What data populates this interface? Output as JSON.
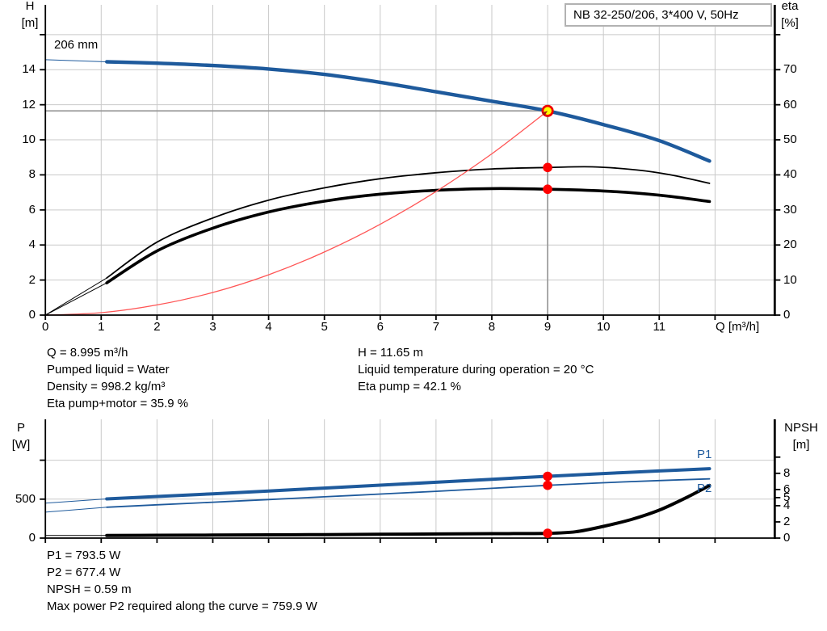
{
  "title_box": {
    "text": "NB 32-250/206, 3*400 V, 50Hz"
  },
  "impeller_label": "206 mm",
  "curve_labels": {
    "p1": "P1",
    "p2": "P2"
  },
  "info_top": {
    "left": [
      "Q = 8.995 m³/h",
      "Pumped liquid = Water",
      "Density = 998.2 kg/m³",
      "Eta pump+motor = 35.9 %"
    ],
    "right": [
      "H = 11.65 m",
      "Liquid temperature during operation = 20 °C",
      "Eta pump = 42.1 %"
    ]
  },
  "info_bottom": [
    "P1 = 793.5 W",
    "P2 = 677.4 W",
    "NPSH = 0.59 m",
    "Max power P2 required along the curve = 759.9 W"
  ],
  "colors": {
    "blue": "#1e5a9c",
    "black": "#000000",
    "red": "#fe0000",
    "system_red": "#ff5555",
    "arrow_red": "#aa1111",
    "grid": "#c9c9c9",
    "guide": "#999999",
    "axis": "#000000",
    "duty_fill": "#ffff00",
    "duty_ring": "#ee0000",
    "box_border": "#b2b2b2"
  },
  "chart_data": [
    {
      "id": "head_eta_chart",
      "type": "line",
      "title": "NB 32-250/206, 3*400 V, 50Hz",
      "duty_point": {
        "q": 8.995,
        "h": 11.65,
        "eta_pump": 42.1,
        "eta_pump_motor": 35.9
      },
      "x_axis": {
        "label": "Q [m³/h]",
        "ticks": [
          0,
          1,
          2,
          3,
          4,
          5,
          6,
          7,
          8,
          9,
          10,
          11
        ],
        "unlabeled_ticks": [
          12
        ],
        "range": [
          0,
          13.07
        ]
      },
      "left_axis": {
        "label_line1": "H",
        "label_line2": "[m]",
        "ticks": [
          0,
          2,
          4,
          6,
          8,
          10,
          12,
          14
        ],
        "unlabeled_ticks": [
          16
        ],
        "range": [
          0,
          17.7
        ]
      },
      "right_axis": {
        "label_line1": "eta",
        "label_line2": "[%]",
        "ticks": [
          0,
          10,
          20,
          30,
          40,
          50,
          60,
          70
        ],
        "unlabeled_ticks": [
          80
        ],
        "range": [
          0,
          88.5
        ]
      },
      "series": [
        {
          "name": "head-curve",
          "yaxis": "left",
          "color": "blue",
          "width": 4.4,
          "lead": [
            [
              0,
              14.57
            ],
            [
              1.1,
              14.45
            ]
          ],
          "points": [
            [
              1.1,
              14.45
            ],
            [
              2,
              14.37
            ],
            [
              3,
              14.24
            ],
            [
              4,
              14.04
            ],
            [
              5,
              13.73
            ],
            [
              6,
              13.28
            ],
            [
              7,
              12.74
            ],
            [
              8,
              12.2
            ],
            [
              9,
              11.65
            ],
            [
              10,
              10.87
            ],
            [
              11,
              9.95
            ],
            [
              11.9,
              8.79
            ]
          ]
        },
        {
          "name": "eta-pump-curve",
          "yaxis": "right",
          "color": "black",
          "width": 1.8,
          "lead": [
            [
              0,
              0
            ],
            [
              1.1,
              10.6
            ]
          ],
          "points": [
            [
              1.1,
              10.6
            ],
            [
              2,
              20.8
            ],
            [
              3,
              27.7
            ],
            [
              4,
              32.8
            ],
            [
              5,
              36.3
            ],
            [
              6,
              38.9
            ],
            [
              7,
              40.6
            ],
            [
              8,
              41.7
            ],
            [
              9,
              42.1
            ],
            [
              9.8,
              42.3
            ],
            [
              10.6,
              41.4
            ],
            [
              11.2,
              40.0
            ],
            [
              11.9,
              37.6
            ]
          ]
        },
        {
          "name": "eta-pump-motor-curve",
          "yaxis": "right",
          "color": "black",
          "width": 3.6,
          "lead": [
            [
              0,
              0
            ],
            [
              1.1,
              9.2
            ]
          ],
          "points": [
            [
              1.1,
              9.2
            ],
            [
              2,
              18.3
            ],
            [
              3,
              24.8
            ],
            [
              4,
              29.4
            ],
            [
              5,
              32.5
            ],
            [
              6,
              34.5
            ],
            [
              7,
              35.6
            ],
            [
              8,
              36.1
            ],
            [
              9,
              35.9
            ],
            [
              10,
              35.4
            ],
            [
              11,
              34.2
            ],
            [
              11.9,
              32.4
            ]
          ]
        },
        {
          "name": "system-curve",
          "yaxis": "left",
          "color": "system_red",
          "width": 1.3,
          "arrow_end": true,
          "points": [
            [
              0,
              0
            ],
            [
              1,
              0.14
            ],
            [
              2,
              0.58
            ],
            [
              3,
              1.29
            ],
            [
              4,
              2.3
            ],
            [
              5,
              3.6
            ],
            [
              6,
              5.18
            ],
            [
              7,
              7.05
            ],
            [
              8,
              9.2
            ],
            [
              9,
              11.65
            ]
          ]
        }
      ],
      "guides": [
        {
          "name": "head-guide-horizontal",
          "from": [
            0,
            11.65
          ],
          "to": [
            9,
            11.65
          ]
        },
        {
          "name": "flow-guide-vertical",
          "from": [
            9,
            0
          ],
          "to": [
            9,
            11.65
          ]
        }
      ],
      "markers": [
        {
          "name": "duty-point",
          "q": 9,
          "value": 11.65,
          "yaxis": "left",
          "style": "duty"
        },
        {
          "name": "eta-pump-point",
          "q": 9,
          "value": 42.1,
          "yaxis": "right",
          "style": "dot"
        },
        {
          "name": "eta-pump-motor-point",
          "q": 9,
          "value": 35.9,
          "yaxis": "right",
          "style": "dot"
        }
      ]
    },
    {
      "id": "power_npsh_chart",
      "type": "line",
      "duty_point": {
        "q": 8.995,
        "p1_w": 793.5,
        "p2_w": 677.4,
        "npsh_m": 0.59
      },
      "x_axis": {
        "ticks": [
          0,
          1,
          2,
          3,
          4,
          5,
          6,
          7,
          8,
          9,
          10,
          11,
          12
        ],
        "range": [
          0,
          13.07
        ]
      },
      "left_axis": {
        "label_line1": "P",
        "label_line2": "[W]",
        "ticks": [
          0,
          500
        ],
        "unlabeled_ticks": [
          1000
        ],
        "range": [
          0,
          1525
        ]
      },
      "right_axis": {
        "label_line1": "NPSH",
        "label_line2": "[m]",
        "ticks": [
          0,
          2,
          4,
          5,
          6,
          8
        ],
        "unlabeled_ticks": [
          10
        ],
        "range": [
          0,
          14.67
        ]
      },
      "series": [
        {
          "name": "p1-curve",
          "yaxis": "left",
          "color": "blue",
          "width": 4,
          "lead": [
            [
              0,
              448
            ],
            [
              1.1,
              503
            ]
          ],
          "points": [
            [
              1.1,
              503
            ],
            [
              2,
              534
            ],
            [
              3,
              569
            ],
            [
              4,
              605
            ],
            [
              5,
              642
            ],
            [
              6,
              679
            ],
            [
              7,
              717
            ],
            [
              8,
              755
            ],
            [
              9,
              793.5
            ],
            [
              10,
              829
            ],
            [
              11,
              862
            ],
            [
              11.9,
              891
            ]
          ]
        },
        {
          "name": "p2-curve",
          "yaxis": "left",
          "color": "blue",
          "width": 1.8,
          "lead": [
            [
              0,
              333
            ],
            [
              1.1,
              396
            ]
          ],
          "points": [
            [
              1.1,
              396
            ],
            [
              2,
              427
            ],
            [
              3,
              461
            ],
            [
              4,
              495
            ],
            [
              5,
              530
            ],
            [
              6,
              565
            ],
            [
              7,
              601
            ],
            [
              8,
              639
            ],
            [
              9,
              677.4
            ],
            [
              10,
              711
            ],
            [
              11,
              739
            ],
            [
              11.9,
              760
            ]
          ]
        },
        {
          "name": "npsh-curve",
          "yaxis": "right",
          "color": "black",
          "width": 4,
          "lead": [
            [
              0,
              0.33
            ],
            [
              1.1,
              0.33
            ]
          ],
          "points": [
            [
              1.1,
              0.33
            ],
            [
              2,
              0.35
            ],
            [
              3,
              0.37
            ],
            [
              4,
              0.4
            ],
            [
              5,
              0.43
            ],
            [
              6,
              0.47
            ],
            [
              7,
              0.51
            ],
            [
              8,
              0.55
            ],
            [
              9,
              0.59
            ],
            [
              9.5,
              0.78
            ],
            [
              10,
              1.45
            ],
            [
              10.5,
              2.3
            ],
            [
              11,
              3.45
            ],
            [
              11.5,
              5.05
            ],
            [
              11.9,
              6.5
            ]
          ]
        }
      ],
      "guides": [],
      "markers": [
        {
          "name": "p1-point",
          "q": 9,
          "value": 793.5,
          "yaxis": "left",
          "style": "dot"
        },
        {
          "name": "p2-point",
          "q": 9,
          "value": 677.4,
          "yaxis": "left",
          "style": "dot"
        },
        {
          "name": "npsh-point",
          "q": 9,
          "value": 0.59,
          "yaxis": "right",
          "style": "dot"
        }
      ]
    }
  ]
}
